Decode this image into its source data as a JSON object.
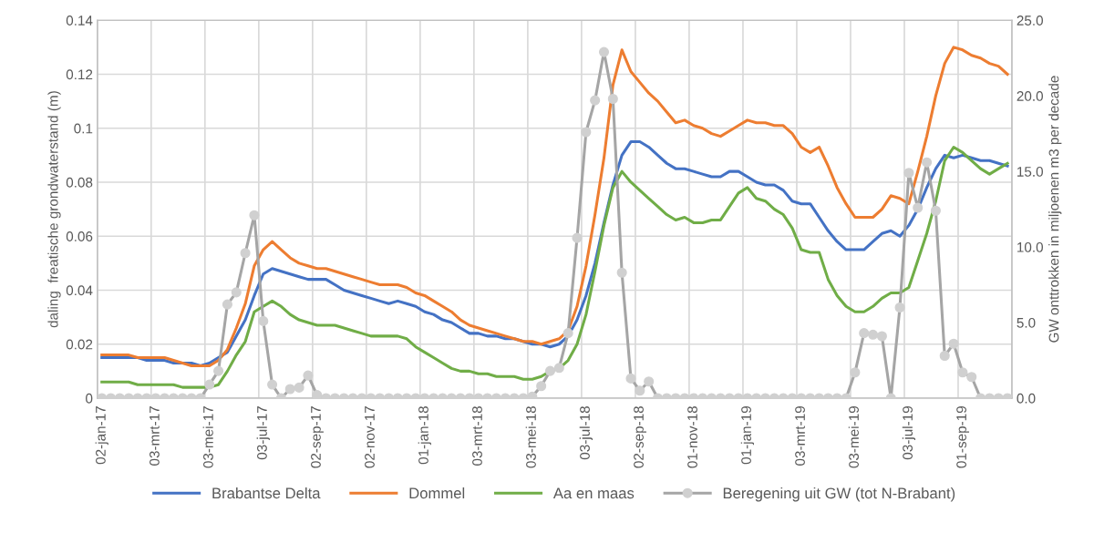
{
  "chart_data": {
    "type": "line",
    "ylabel": "daling  freatische grondwaterstand (m)",
    "y2label": "GW onttrokken in miljoenen m3 per decade",
    "categories": [
      "02-jan-17",
      null,
      null,
      null,
      null,
      null,
      "03-mrt-17",
      null,
      null,
      null,
      null,
      null,
      "03-mei-17",
      null,
      null,
      null,
      null,
      null,
      "03-jul-17",
      null,
      null,
      null,
      null,
      null,
      "02-sep-17",
      null,
      null,
      null,
      null,
      null,
      "02-nov-17",
      null,
      null,
      null,
      null,
      null,
      "01-jan-18",
      null,
      null,
      null,
      null,
      null,
      "03-mrt-18",
      null,
      null,
      null,
      null,
      null,
      "03-mei-18",
      null,
      null,
      null,
      null,
      null,
      "03-jul-18",
      null,
      null,
      null,
      null,
      null,
      "02-sep-18",
      null,
      null,
      null,
      null,
      null,
      "01-nov-18",
      null,
      null,
      null,
      null,
      null,
      "01-jan-19",
      null,
      null,
      null,
      null,
      null,
      "03-mrt-19",
      null,
      null,
      null,
      null,
      null,
      "03-mei-19",
      null,
      null,
      null,
      null,
      null,
      "03-jul-19",
      null,
      null,
      null,
      null,
      null,
      "01-sep-19",
      null,
      null,
      null,
      null,
      null
    ],
    "series": [
      {
        "name": "Brabantse Delta",
        "color": "#4472c4",
        "marker": "none",
        "values": [
          0.015,
          0.015,
          0.015,
          0.015,
          0.015,
          0.014,
          0.014,
          0.014,
          0.013,
          0.013,
          0.013,
          0.012,
          0.013,
          0.015,
          0.017,
          0.023,
          0.029,
          0.038,
          0.046,
          0.048,
          0.047,
          0.046,
          0.045,
          0.044,
          0.044,
          0.044,
          0.042,
          0.04,
          0.039,
          0.038,
          0.037,
          0.036,
          0.035,
          0.036,
          0.035,
          0.034,
          0.032,
          0.031,
          0.029,
          0.028,
          0.026,
          0.024,
          0.024,
          0.023,
          0.023,
          0.022,
          0.022,
          0.021,
          0.02,
          0.02,
          0.019,
          0.02,
          0.023,
          0.029,
          0.038,
          0.05,
          0.065,
          0.079,
          0.09,
          0.095,
          0.095,
          0.093,
          0.09,
          0.087,
          0.085,
          0.085,
          0.084,
          0.083,
          0.082,
          0.082,
          0.084,
          0.084,
          0.082,
          0.08,
          0.079,
          0.079,
          0.077,
          0.073,
          0.072,
          0.072,
          0.067,
          0.062,
          0.058,
          0.055,
          0.055,
          0.055,
          0.058,
          0.061,
          0.062,
          0.06,
          0.064,
          0.07,
          0.078,
          0.085,
          0.09,
          0.089,
          0.09,
          0.089,
          0.088,
          0.088,
          0.087,
          0.086
        ]
      },
      {
        "name": "Dommel",
        "color": "#ed7d31",
        "marker": "none",
        "values": [
          0.016,
          0.016,
          0.016,
          0.016,
          0.015,
          0.015,
          0.015,
          0.015,
          0.014,
          0.013,
          0.012,
          0.012,
          0.012,
          0.014,
          0.018,
          0.026,
          0.035,
          0.049,
          0.055,
          0.058,
          0.055,
          0.052,
          0.05,
          0.049,
          0.048,
          0.048,
          0.047,
          0.046,
          0.045,
          0.044,
          0.043,
          0.042,
          0.042,
          0.042,
          0.041,
          0.039,
          0.038,
          0.036,
          0.034,
          0.032,
          0.029,
          0.027,
          0.026,
          0.025,
          0.024,
          0.023,
          0.022,
          0.021,
          0.021,
          0.02,
          0.021,
          0.022,
          0.025,
          0.034,
          0.049,
          0.068,
          0.089,
          0.116,
          0.129,
          0.121,
          0.117,
          0.113,
          0.11,
          0.106,
          0.102,
          0.103,
          0.101,
          0.1,
          0.098,
          0.097,
          0.099,
          0.101,
          0.103,
          0.102,
          0.102,
          0.101,
          0.101,
          0.098,
          0.093,
          0.091,
          0.093,
          0.086,
          0.078,
          0.072,
          0.067,
          0.067,
          0.067,
          0.07,
          0.075,
          0.074,
          0.072,
          0.084,
          0.097,
          0.112,
          0.124,
          0.13,
          0.129,
          0.127,
          0.126,
          0.124,
          0.123,
          0.12
        ]
      },
      {
        "name": "Aa en maas",
        "color": "#70ad47",
        "marker": "none",
        "values": [
          0.006,
          0.006,
          0.006,
          0.006,
          0.005,
          0.005,
          0.005,
          0.005,
          0.005,
          0.004,
          0.004,
          0.004,
          0.004,
          0.005,
          0.01,
          0.016,
          0.021,
          0.032,
          0.034,
          0.036,
          0.034,
          0.031,
          0.029,
          0.028,
          0.027,
          0.027,
          0.027,
          0.026,
          0.025,
          0.024,
          0.023,
          0.023,
          0.023,
          0.023,
          0.022,
          0.019,
          0.017,
          0.015,
          0.013,
          0.011,
          0.01,
          0.01,
          0.009,
          0.009,
          0.008,
          0.008,
          0.008,
          0.007,
          0.007,
          0.008,
          0.01,
          0.011,
          0.014,
          0.02,
          0.031,
          0.047,
          0.064,
          0.078,
          0.084,
          0.08,
          0.077,
          0.074,
          0.071,
          0.068,
          0.066,
          0.067,
          0.065,
          0.065,
          0.066,
          0.066,
          0.071,
          0.076,
          0.078,
          0.074,
          0.073,
          0.07,
          0.068,
          0.063,
          0.055,
          0.054,
          0.054,
          0.044,
          0.038,
          0.034,
          0.032,
          0.032,
          0.034,
          0.037,
          0.039,
          0.039,
          0.041,
          0.051,
          0.061,
          0.073,
          0.088,
          0.093,
          0.091,
          0.088,
          0.085,
          0.083,
          0.085,
          0.087
        ]
      },
      {
        "name": "Beregening uit GW (tot N-Brabant)",
        "color": "#a5a5a5",
        "marker": "circle",
        "axis": "y2",
        "values": [
          0,
          0,
          0,
          0,
          0,
          0,
          0,
          0,
          0,
          0,
          0,
          0,
          0.9,
          1.8,
          6.2,
          7.0,
          9.6,
          12.1,
          5.1,
          0.9,
          0,
          0.6,
          0.7,
          1.5,
          0.2,
          0,
          0,
          0,
          0,
          0,
          0,
          0,
          0,
          0,
          0,
          0,
          0,
          0,
          0,
          0,
          0,
          0,
          0,
          0,
          0,
          0,
          0,
          0,
          0.1,
          0.8,
          1.8,
          2.0,
          4.3,
          10.6,
          17.6,
          19.7,
          22.9,
          19.8,
          8.3,
          1.3,
          0.5,
          1.1,
          0,
          0,
          0,
          0,
          0,
          0,
          0,
          0,
          0,
          0,
          0,
          0,
          0,
          0,
          0,
          0,
          0,
          0,
          0,
          0,
          0,
          0,
          1.7,
          4.3,
          4.2,
          4.1,
          0,
          6.0,
          14.9,
          12.6,
          15.6,
          12.4,
          2.8,
          3.6,
          1.7,
          1.4,
          0,
          0,
          0,
          0
        ]
      }
    ],
    "ylim": [
      0,
      0.14
    ],
    "yticks": [
      0,
      0.02,
      0.04,
      0.06,
      0.08,
      0.1,
      0.12,
      0.14
    ],
    "y2lim": [
      0,
      25
    ],
    "y2ticks": [
      {
        "value": 0,
        "label": "0.0"
      },
      {
        "value": 5,
        "label": "5.0"
      },
      {
        "value": 10,
        "label": "10.0"
      },
      {
        "value": 15,
        "label": "15.0"
      },
      {
        "value": 20,
        "label": "20.0"
      },
      {
        "value": 25,
        "label": "25.0"
      }
    ],
    "grid": true,
    "legend": "bottom",
    "line_style": "solid"
  }
}
